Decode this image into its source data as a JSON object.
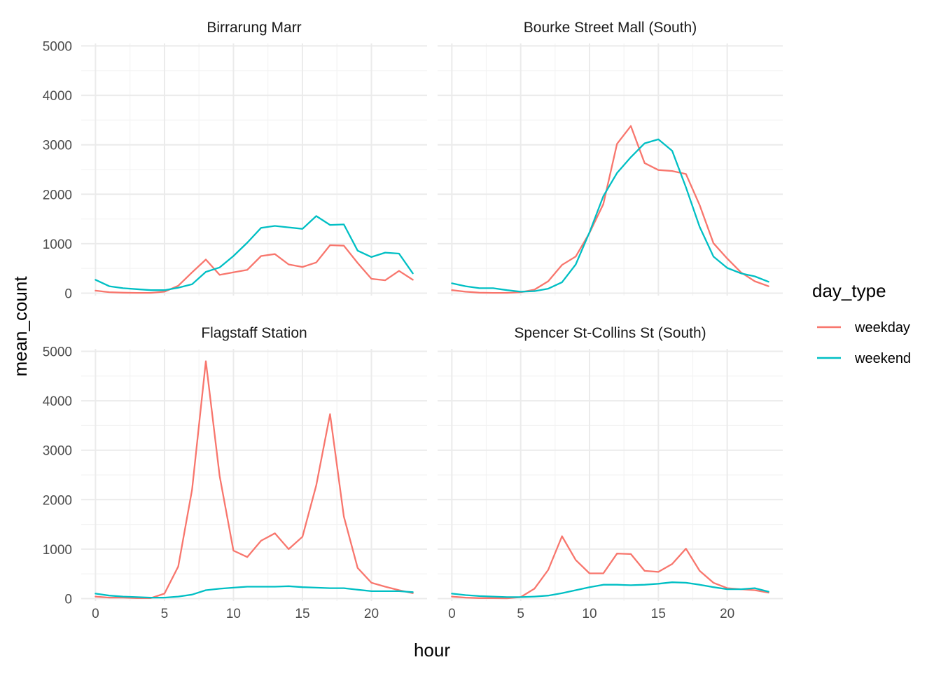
{
  "chart_data": {
    "type": "line",
    "xlabel": "hour",
    "ylabel": "mean_count",
    "xlim": [
      0,
      23
    ],
    "ylim": [
      0,
      5000
    ],
    "x_ticks": [
      0,
      5,
      10,
      15,
      20
    ],
    "y_ticks": [
      0,
      1000,
      2000,
      3000,
      4000,
      5000
    ],
    "grid": true,
    "legend": {
      "title": "day_type",
      "position": "right",
      "entries": [
        {
          "name": "weekday",
          "color": "#F8766D"
        },
        {
          "name": "weekend",
          "color": "#00BFC4"
        }
      ]
    },
    "x": [
      0,
      1,
      2,
      3,
      4,
      5,
      6,
      7,
      8,
      9,
      10,
      11,
      12,
      13,
      14,
      15,
      16,
      17,
      18,
      19,
      20,
      21,
      22,
      23
    ],
    "facets": [
      {
        "title": "Birrarung Marr",
        "series": [
          {
            "name": "weekday",
            "values": [
              50,
              20,
              10,
              5,
              5,
              30,
              150,
              420,
              680,
              370,
              420,
              470,
              750,
              790,
              580,
              530,
              620,
              970,
              960,
              610,
              290,
              260,
              450,
              270
            ]
          },
          {
            "name": "weekend",
            "values": [
              270,
              140,
              100,
              80,
              60,
              60,
              110,
              180,
              430,
              520,
              750,
              1020,
              1320,
              1360,
              1330,
              1300,
              1560,
              1380,
              1390,
              860,
              730,
              820,
              800,
              400
            ]
          }
        ]
      },
      {
        "title": "Bourke Street Mall (South)",
        "series": [
          {
            "name": "weekday",
            "values": [
              60,
              30,
              10,
              5,
              5,
              20,
              70,
              240,
              570,
              740,
              1220,
              1800,
              3020,
              3380,
              2630,
              2490,
              2470,
              2410,
              1780,
              1010,
              700,
              420,
              240,
              140
            ]
          },
          {
            "name": "weekend",
            "values": [
              200,
              140,
              100,
              100,
              60,
              30,
              40,
              90,
              220,
              580,
              1230,
              1960,
              2430,
              2750,
              3030,
              3110,
              2880,
              2140,
              1340,
              740,
              510,
              400,
              340,
              230
            ]
          }
        ]
      },
      {
        "title": "Flagstaff Station",
        "series": [
          {
            "name": "weekday",
            "values": [
              40,
              20,
              20,
              10,
              10,
              100,
              650,
              2200,
              4800,
              2480,
              970,
              840,
              1170,
              1320,
              1000,
              1250,
              2290,
              3730,
              1660,
              620,
              320,
              240,
              170,
              110
            ]
          },
          {
            "name": "weekend",
            "values": [
              100,
              60,
              40,
              30,
              20,
              20,
              40,
              80,
              170,
              200,
              220,
              240,
              240,
              240,
              250,
              230,
              220,
              210,
              210,
              180,
              150,
              150,
              150,
              130
            ]
          }
        ]
      },
      {
        "title": "Spencer St-Collins St (South)",
        "series": [
          {
            "name": "weekday",
            "values": [
              40,
              20,
              10,
              10,
              5,
              30,
              200,
              580,
              1260,
              780,
              510,
              510,
              910,
              900,
              560,
              540,
              700,
              1010,
              560,
              320,
              210,
              190,
              170,
              120
            ]
          },
          {
            "name": "weekend",
            "values": [
              100,
              70,
              50,
              40,
              30,
              30,
              40,
              60,
              110,
              170,
              230,
              280,
              280,
              270,
              280,
              300,
              330,
              320,
              280,
              230,
              190,
              190,
              210,
              140
            ]
          }
        ]
      }
    ]
  }
}
